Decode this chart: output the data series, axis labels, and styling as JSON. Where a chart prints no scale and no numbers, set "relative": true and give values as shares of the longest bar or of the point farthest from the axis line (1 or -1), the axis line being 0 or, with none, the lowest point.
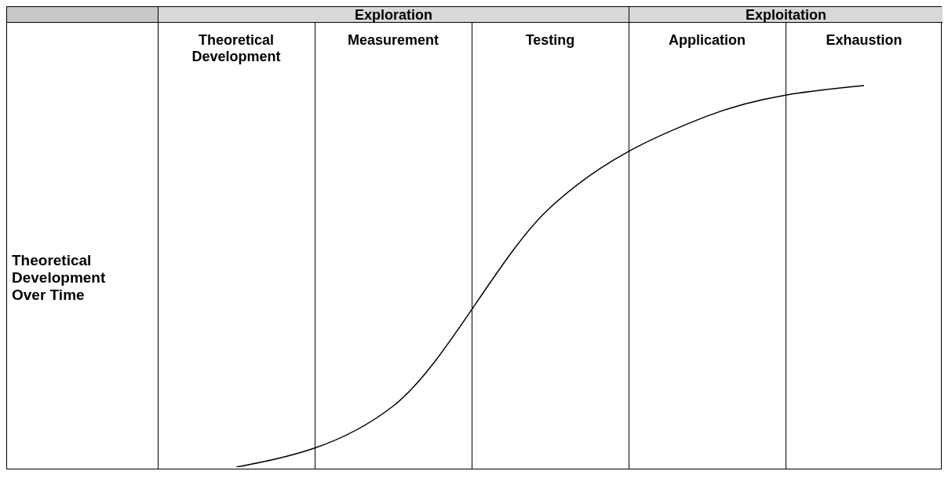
{
  "chart_data": {
    "type": "line",
    "relative": true,
    "ylabel": "Theoretical Development Over Time",
    "categories": [
      "Theoretical Development",
      "Measurement",
      "Testing",
      "Application",
      "Exhaustion"
    ],
    "annotations": [
      "Exploration",
      "Exploitation"
    ],
    "series": [
      {
        "color": "#000000",
        "values": [
          0,
          0.16,
          0.68,
          0.92,
          1
        ]
      }
    ],
    "marker": "none"
  }
}
